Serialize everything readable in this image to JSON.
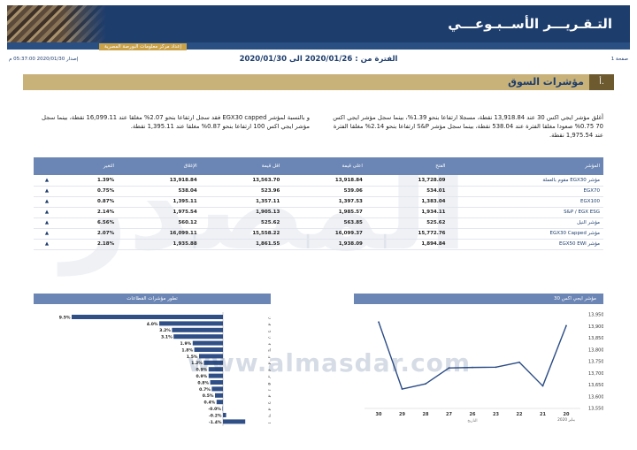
{
  "header": {
    "report_title": "التـقـريـــر الأســبـوعـــي",
    "sub_tag": "إعداد مركز معلومات البورصة المصرية"
  },
  "meta": {
    "page_num": "صفحة 1",
    "period": "الفترة من : 2020/01/26 الى 2020/01/30",
    "issued": "إصدار 2020/01/30 05:37:00 م"
  },
  "section": {
    "num": "أ.",
    "title": "مؤشرات السوق"
  },
  "paragraphs": {
    "right": "أغلق مؤشر ايجي اكس 30 عند 13,918.84 نقطة، مسجلا ارتفاعا بنحو 1.39%، بينما سجل مؤشر ايجي اكس 70 0.75% صعودا مغلقا الفترة عند 538.04 نقطة، بينما سجل مؤشر S&P ارتفاعا بنحو 2.14% مغلقا الفترة عند 1,975.54 نقطة.",
    "left": "و بالنسبة لمؤشر EGX30 capped فقد سجل ارتفاعا بنحو 2.07% مغلقا عند 16,099.11 نقطة، بينما سجل مؤشر ايجي اكس 100 ارتفاعا بنحو 0.87% مغلقا عند 1,395.11 نقطة."
  },
  "watermark": {
    "arabic": "المصدر",
    "url": "www.almasdar.com"
  },
  "table": {
    "headers": [
      "المؤشر",
      "الفتح",
      "اعلى قيمة",
      "اقل قيمة",
      "الإغلاق",
      "التغير",
      ""
    ],
    "rows": [
      {
        "name": "مؤشر EGX30 مقوم بالعملة",
        "open": "13,728.09",
        "high": "13,918.84",
        "low": "13,563.70",
        "close": "13,918.84",
        "change": "1.39%",
        "arrow": "▲"
      },
      {
        "name": "EGX70",
        "open": "534.01",
        "high": "539.06",
        "low": "523.96",
        "close": "538.04",
        "change": "0.75%",
        "arrow": "▲"
      },
      {
        "name": "EGX100",
        "open": "1,383.04",
        "high": "1,397.53",
        "low": "1,357.11",
        "close": "1,395.11",
        "change": "0.87%",
        "arrow": "▲"
      },
      {
        "name": "S&P / EGX ESG",
        "open": "1,934.11",
        "high": "1,985.57",
        "low": "1,905.13",
        "close": "1,975.54",
        "change": "2.14%",
        "arrow": "▲"
      },
      {
        "name": "مؤشر النيل",
        "open": "525.62",
        "high": "563.85",
        "low": "525.62",
        "close": "560.12",
        "change": "6.56%",
        "arrow": "▲"
      },
      {
        "name": "مؤشر EGX30 Capped",
        "open": "15,772.76",
        "high": "16,099.37",
        "low": "15,558.22",
        "close": "16,099.11",
        "change": "2.07%",
        "arrow": "▲"
      },
      {
        "name": "مؤشر EGX50 EWI",
        "open": "1,894.84",
        "high": "1,938.09",
        "low": "1,861.55",
        "close": "1,935.88",
        "change": "2.18%",
        "arrow": "▲"
      }
    ]
  },
  "panels": {
    "perf_title": "تطور مؤشرات القطاعات",
    "egx_title": "مؤشر ايجي اكس 30"
  },
  "chart_data": [
    {
      "type": "bar",
      "orientation": "horizontal",
      "categories": [
        "اتصالات و اعلام و تكنولوجيا المعلومات",
        "موارد أساسية",
        "خدمات النقل والشحن",
        "خدمات و منتجات صناعية وسيارات",
        "سياحة وترفيه",
        "مواد البناء",
        "طاقة وخدمات مساندة",
        "خدمات تعليمية",
        "خدمات مالية غير مصرفية",
        "منسوجات و سلع معمرة",
        "أغذية و مشروبات و تبغ",
        "عقارات",
        "مقاولات و إنشاءات هندسية",
        "تجارة و موزعون",
        "رعاية صحية و ادوية",
        "بنوك",
        "ورق ومواد تعبئة و تغليف"
      ],
      "values": [
        9.5,
        4.0,
        3.2,
        3.1,
        1.9,
        1.8,
        1.5,
        1.2,
        0.9,
        0.9,
        0.8,
        0.7,
        0.5,
        0.4,
        -0.0,
        -0.2,
        -1.4
      ],
      "labels": [
        "9.5%",
        "4.0%",
        "3.2%",
        "3.1%",
        "1.9%",
        "1.8%",
        "1.5%",
        "1.2%",
        "0.9%",
        "0.9%",
        "0.8%",
        "0.7%",
        "0.5%",
        "0.4%",
        "-0.0%",
        "-0.2%",
        "-1.4%"
      ],
      "colors": {
        "bar": "#2f4f86"
      }
    },
    {
      "type": "line",
      "x": [
        "30",
        "29",
        "28",
        "27",
        "26",
        "23",
        "22",
        "21",
        "20"
      ],
      "y": [
        13919,
        13633,
        13655,
        13723,
        13725,
        13726,
        13747,
        13646,
        13903
      ],
      "ylim": [
        13550,
        13950
      ],
      "yticks": [
        "13,950",
        "13,900",
        "13,850",
        "13,800",
        "13,750",
        "13,700",
        "13,650",
        "13,600",
        "13,550"
      ],
      "xlabel": "التاريخ",
      "month_label": "يناير 2020",
      "colors": {
        "line": "#2b4c86"
      }
    }
  ]
}
